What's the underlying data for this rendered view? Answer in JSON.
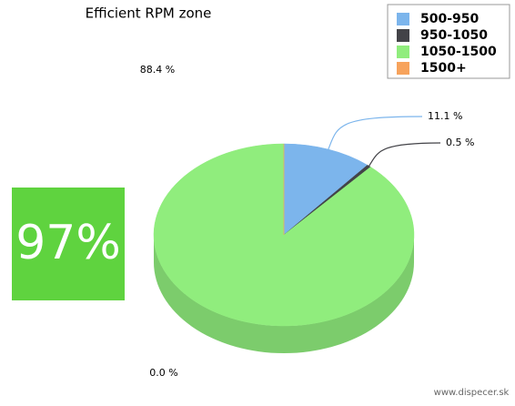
{
  "chart_data": {
    "type": "pie",
    "title": "Efficient RPM zone",
    "categories": [
      "500-950",
      "950-1050",
      "1050-1500",
      "1500+"
    ],
    "values": [
      11.1,
      0.5,
      88.4,
      0.0
    ],
    "value_labels": [
      "11.1 %",
      "0.5 %",
      "88.4 %",
      "0.0 %"
    ],
    "colors": [
      "#7cb5ec",
      "#434348",
      "#90ed7d",
      "#f7a35c"
    ],
    "legend": "top-right"
  },
  "badge": "97%",
  "footer": "www.dispecer.sk"
}
